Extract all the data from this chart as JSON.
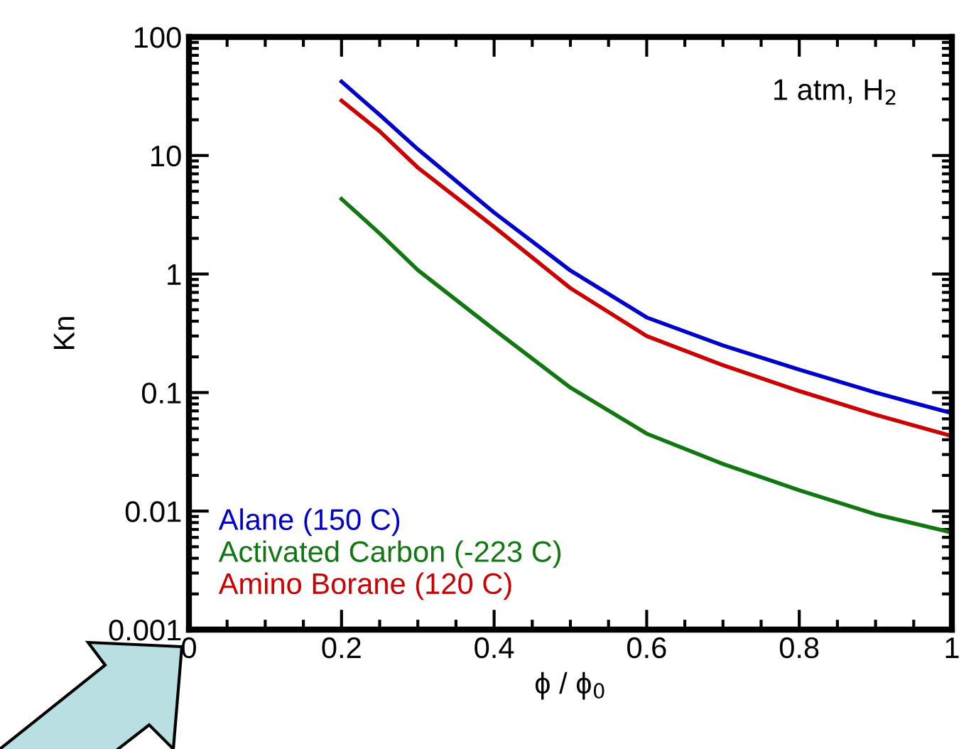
{
  "chart_data": {
    "type": "line",
    "xlabel": "ϕ / ϕ$_{0}$",
    "ylabel": "Kn",
    "annotations": [
      "1 atm, H$_{2}$"
    ],
    "x": [
      0.2,
      0.25,
      0.3,
      0.4,
      0.5,
      0.6,
      0.7,
      0.8,
      0.9,
      1.0
    ],
    "series": [
      {
        "name": "Alane (150 C)",
        "color": "#0000cc",
        "values": [
          42,
          22,
          11.3,
          3.3,
          1.07,
          0.43,
          0.25,
          0.156,
          0.1,
          0.067
        ]
      },
      {
        "name": "Activated Carbon (-223 C)",
        "color": "#117711",
        "values": [
          4.3,
          2.2,
          1.08,
          0.34,
          0.11,
          0.045,
          0.025,
          0.015,
          0.0094,
          0.0066
        ]
      },
      {
        "name": "Amino Borane (120 C)",
        "color": "#cc0000",
        "values": [
          29,
          16,
          7.9,
          2.5,
          0.76,
          0.3,
          0.17,
          0.103,
          0.065,
          0.043
        ]
      }
    ],
    "log": "y",
    "xlim": [
      0,
      1
    ],
    "ylim": [
      0.001,
      100
    ],
    "xticks": [
      0,
      0.2,
      0.4,
      0.6,
      0.8,
      1
    ],
    "yticks": [
      0.001,
      0.01,
      0.1,
      1,
      10,
      100
    ],
    "legend": "bottom left",
    "grid": false
  }
}
